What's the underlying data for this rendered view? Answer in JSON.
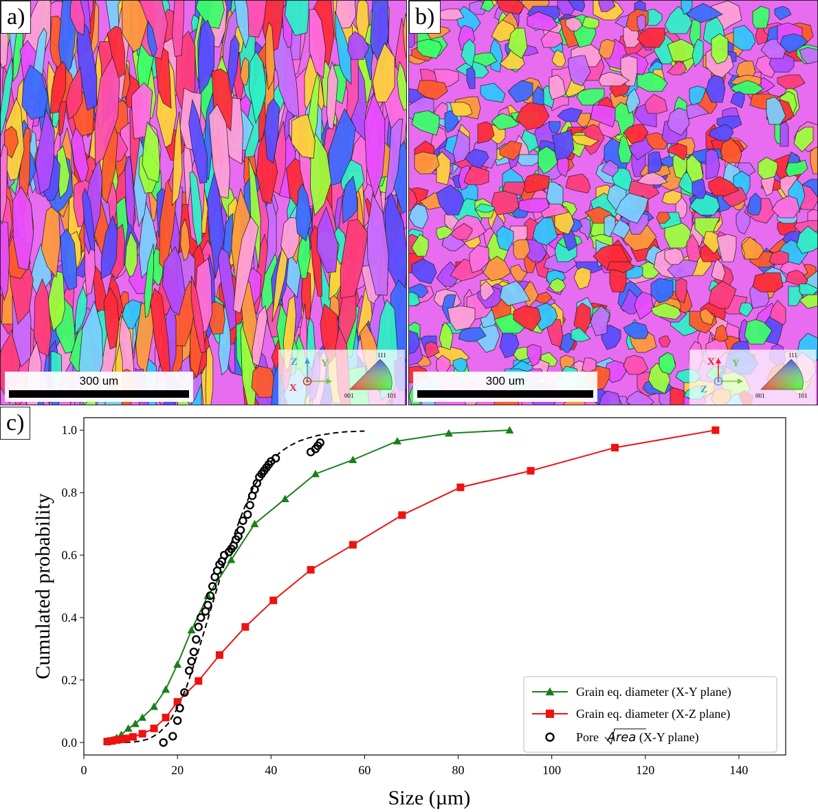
{
  "panels": {
    "a": {
      "label": "a)",
      "scale_text": "300 um",
      "axes": {
        "z": "Z",
        "y": "Y",
        "x": "X"
      },
      "ipf": {
        "top": "111",
        "left": "001",
        "right": "101"
      }
    },
    "b": {
      "label": "b)",
      "scale_text": "300 um",
      "axes": {
        "x": "X",
        "y": "Y",
        "z": "Z"
      },
      "ipf": {
        "top": "111",
        "left": "001",
        "right": "101"
      }
    },
    "c": {
      "label": "c)"
    }
  },
  "colors": {
    "grain_xy": "#1a7f1a",
    "grain_xz": "#ee1111",
    "pore": "#000000"
  },
  "chart_data": {
    "type": "line",
    "xlabel": "Size (µm)",
    "ylabel": "Cumulated probability",
    "xlim": [
      0,
      150
    ],
    "ylim": [
      -0.04,
      1.04
    ],
    "xticks": [
      0,
      20,
      40,
      60,
      80,
      100,
      120,
      140
    ],
    "yticks": [
      0.0,
      0.2,
      0.4,
      0.6,
      0.8,
      1.0
    ],
    "xtick_labels": [
      "0",
      "20",
      "40",
      "60",
      "80",
      "100",
      "120",
      "140"
    ],
    "ytick_labels": [
      "0.0",
      "0.2",
      "0.4",
      "0.6",
      "0.8",
      "1.0"
    ],
    "legend_position": "lower right",
    "series": [
      {
        "name": "Grain eq. diameter (X-Y plane)",
        "marker": "triangle",
        "x": [
          5,
          6,
          7,
          8,
          9.5,
          11,
          12.5,
          15,
          17.5,
          20,
          23,
          26.5,
          31.5,
          36.5,
          43,
          49.5,
          57.5,
          67,
          78,
          91
        ],
        "y": [
          0.005,
          0.008,
          0.015,
          0.025,
          0.045,
          0.06,
          0.08,
          0.115,
          0.17,
          0.25,
          0.36,
          0.47,
          0.585,
          0.7,
          0.78,
          0.86,
          0.905,
          0.965,
          0.99,
          1.0
        ]
      },
      {
        "name": "Grain eq. diameter (X-Z plane)",
        "marker": "square",
        "x": [
          5,
          6,
          7,
          8,
          9,
          10.5,
          12.5,
          15,
          17.5,
          20,
          24.5,
          29,
          34.5,
          40.5,
          48.5,
          57.5,
          68,
          80.5,
          95.5,
          113.5,
          135
        ],
        "y": [
          0.003,
          0.005,
          0.008,
          0.01,
          0.013,
          0.018,
          0.028,
          0.045,
          0.08,
          0.13,
          0.197,
          0.28,
          0.37,
          0.455,
          0.553,
          0.633,
          0.728,
          0.817,
          0.87,
          0.944,
          1.0
        ]
      },
      {
        "name": "Pore √Area (X-Y plane)",
        "marker": "circle-open",
        "x": [
          17,
          19,
          20,
          20.5,
          21.5,
          22.5,
          23,
          23.5,
          24,
          24.5,
          25,
          26,
          26.5,
          27,
          27.5,
          28,
          28.5,
          29,
          29.5,
          30,
          31,
          31.5,
          32,
          32.5,
          33,
          33.5,
          34,
          35,
          35.5,
          36,
          36.5,
          37,
          37.5,
          38,
          38.5,
          39,
          39.5,
          40,
          41,
          48.5,
          49.5,
          50,
          50.5
        ],
        "y": [
          0.0,
          0.02,
          0.07,
          0.11,
          0.16,
          0.23,
          0.26,
          0.29,
          0.33,
          0.37,
          0.4,
          0.42,
          0.44,
          0.47,
          0.5,
          0.53,
          0.55,
          0.57,
          0.58,
          0.6,
          0.61,
          0.62,
          0.63,
          0.65,
          0.66,
          0.68,
          0.71,
          0.73,
          0.76,
          0.79,
          0.81,
          0.83,
          0.85,
          0.86,
          0.87,
          0.88,
          0.89,
          0.9,
          0.91,
          0.93,
          0.94,
          0.95,
          0.96
        ]
      }
    ],
    "fit_curve": {
      "style": "dashed",
      "x": [
        5,
        8,
        10,
        12,
        14,
        16,
        18,
        20,
        22,
        24,
        26,
        28,
        30,
        32,
        34,
        36,
        38,
        40,
        42,
        44,
        46,
        48,
        50,
        53,
        56,
        60
      ],
      "y": [
        0.0,
        0.0,
        0.001,
        0.004,
        0.012,
        0.03,
        0.06,
        0.11,
        0.18,
        0.27,
        0.37,
        0.47,
        0.57,
        0.66,
        0.74,
        0.81,
        0.86,
        0.9,
        0.93,
        0.95,
        0.965,
        0.975,
        0.983,
        0.99,
        0.995,
        0.997
      ]
    }
  },
  "legend": {
    "entries": [
      {
        "text": "Grain eq. diameter (X-Y plane)"
      },
      {
        "prefix": "Pore ",
        "sqrt": "Area",
        "suffix": " (X-Y plane)"
      }
    ],
    "entry_xz": "Grain eq. diameter (X-Z plane)"
  }
}
